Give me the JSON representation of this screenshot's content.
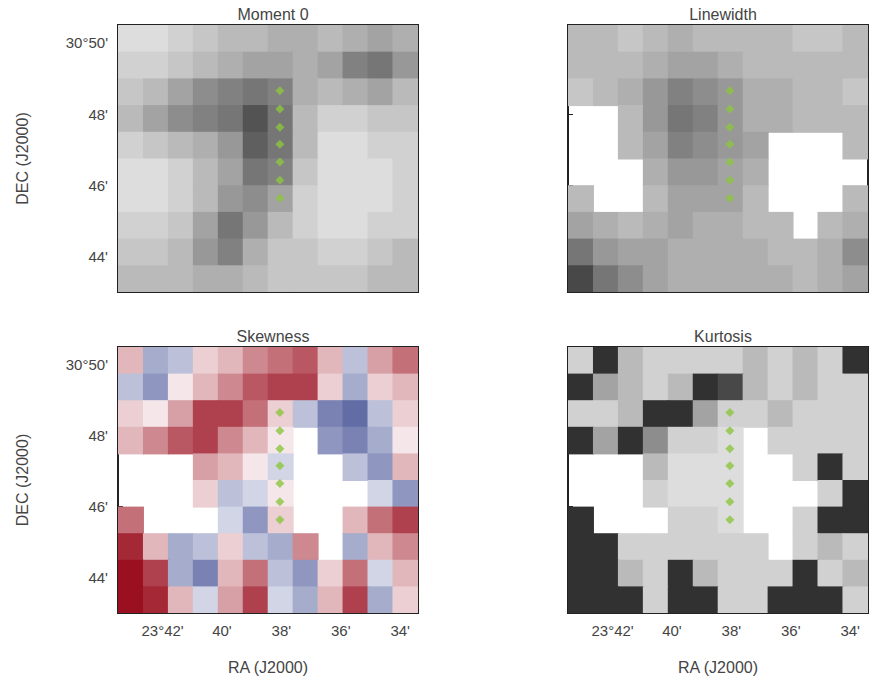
{
  "chart_data": [
    {
      "type": "heatmap",
      "title": "Moment 0",
      "ylabel": "DEC (J2000)",
      "tick_labels": "y",
      "grid": false,
      "xlim": [
        43.5,
        33.4
      ],
      "ylim": [
        43,
        50.5
      ],
      "xticks": [
        {
          "value": 42,
          "label": "23°42'"
        },
        {
          "value": 40,
          "label": "40'"
        },
        {
          "value": 38,
          "label": "38'"
        },
        {
          "value": 36,
          "label": "36'"
        },
        {
          "value": 34,
          "label": "34'"
        }
      ],
      "yticks": [
        {
          "value": 44,
          "label": "44'"
        },
        {
          "value": 46,
          "label": "46'"
        },
        {
          "value": 48,
          "label": "48'"
        },
        {
          "value": 50,
          "label": "30°50'"
        }
      ],
      "x": [
        43.08,
        42.24,
        41.4,
        40.56,
        39.72,
        38.88,
        38.04,
        37.2,
        36.36,
        35.52,
        34.68,
        33.84
      ],
      "y": [
        50.125,
        49.375,
        48.625,
        47.875,
        47.125,
        46.375,
        45.625,
        44.875,
        44.125,
        43.375
      ],
      "crange": [
        0,
        1
      ],
      "colors": [
        "#ffffff",
        "#1a1a1a"
      ],
      "cells": [
        [
          0.15,
          0.15,
          0.2,
          0.25,
          0.3,
          0.3,
          0.35,
          0.35,
          0.3,
          0.35,
          0.4,
          0.35
        ],
        [
          0.2,
          0.2,
          0.25,
          0.3,
          0.35,
          0.4,
          0.4,
          0.35,
          0.4,
          0.55,
          0.6,
          0.45
        ],
        [
          0.25,
          0.3,
          0.4,
          0.5,
          0.55,
          0.6,
          0.55,
          0.35,
          0.3,
          0.35,
          0.4,
          0.3
        ],
        [
          0.3,
          0.4,
          0.5,
          0.55,
          0.6,
          0.75,
          0.6,
          0.3,
          0.2,
          0.2,
          0.25,
          0.25
        ],
        [
          0.2,
          0.25,
          0.3,
          0.35,
          0.45,
          0.7,
          0.6,
          0.3,
          0.15,
          0.15,
          0.2,
          0.2
        ],
        [
          0.15,
          0.15,
          0.2,
          0.3,
          0.4,
          0.6,
          0.55,
          0.25,
          0.15,
          0.15,
          0.15,
          0.2
        ],
        [
          0.15,
          0.15,
          0.2,
          0.3,
          0.45,
          0.5,
          0.4,
          0.2,
          0.15,
          0.15,
          0.15,
          0.2
        ],
        [
          0.2,
          0.2,
          0.25,
          0.4,
          0.6,
          0.45,
          0.3,
          0.2,
          0.15,
          0.15,
          0.2,
          0.2
        ],
        [
          0.25,
          0.25,
          0.3,
          0.45,
          0.55,
          0.35,
          0.25,
          0.25,
          0.2,
          0.2,
          0.25,
          0.3
        ],
        [
          0.3,
          0.3,
          0.3,
          0.35,
          0.35,
          0.3,
          0.25,
          0.25,
          0.25,
          0.25,
          0.3,
          0.3
        ]
      ],
      "series": [
        {
          "type": "scatter",
          "marker": "diamond",
          "color": "#8cc63f",
          "x": [
            38.05,
            38.05,
            38.05,
            38.05,
            38.05,
            38.05,
            38.05
          ],
          "values": [
            48.65,
            48.14,
            47.63,
            47.15,
            46.65,
            46.14,
            45.63
          ]
        }
      ]
    },
    {
      "type": "heatmap",
      "title": "Linewidth",
      "tick_labels": false,
      "grid": false,
      "xlim": [
        43.5,
        33.4
      ],
      "ylim": [
        43,
        50.5
      ],
      "xticks": [
        {
          "value": 42,
          "label": "23°42'"
        },
        {
          "value": 40,
          "label": "40'"
        },
        {
          "value": 38,
          "label": "38'"
        },
        {
          "value": 36,
          "label": "36'"
        },
        {
          "value": 34,
          "label": "34'"
        }
      ],
      "yticks": [
        {
          "value": 44,
          "label": "44'"
        },
        {
          "value": 46,
          "label": "46'"
        },
        {
          "value": 48,
          "label": "48'"
        },
        {
          "value": 50,
          "label": "30°50'"
        }
      ],
      "x": [
        43.08,
        42.24,
        41.4,
        40.56,
        39.72,
        38.88,
        38.04,
        37.2,
        36.36,
        35.52,
        34.68,
        33.84
      ],
      "y": [
        50.125,
        49.375,
        48.625,
        47.875,
        47.125,
        46.375,
        45.625,
        44.875,
        44.125,
        43.375
      ],
      "crange": [
        0,
        1
      ],
      "colors": [
        "#ffffff",
        "#1a1a1a"
      ],
      "cells": [
        [
          0.3,
          0.3,
          0.25,
          0.3,
          0.35,
          0.3,
          0.3,
          0.3,
          0.3,
          0.25,
          0.25,
          0.3
        ],
        [
          0.3,
          0.3,
          0.3,
          0.35,
          0.4,
          0.4,
          0.35,
          0.3,
          0.3,
          0.3,
          0.3,
          0.3
        ],
        [
          0.25,
          0.3,
          0.35,
          0.45,
          0.55,
          0.5,
          0.45,
          0.35,
          0.35,
          0.3,
          0.3,
          0.25
        ],
        [
          null,
          null,
          0.3,
          0.45,
          0.6,
          0.55,
          0.45,
          0.35,
          0.35,
          0.3,
          0.3,
          0.3
        ],
        [
          null,
          null,
          0.3,
          0.4,
          0.55,
          0.5,
          0.45,
          0.4,
          null,
          null,
          null,
          0.3
        ],
        [
          null,
          null,
          null,
          0.35,
          0.45,
          0.45,
          0.4,
          0.35,
          null,
          null,
          null,
          null
        ],
        [
          0.3,
          null,
          null,
          0.3,
          0.4,
          0.4,
          0.4,
          0.3,
          null,
          null,
          null,
          0.3
        ],
        [
          0.4,
          0.35,
          0.3,
          0.35,
          0.4,
          0.35,
          0.35,
          0.3,
          0.3,
          null,
          0.3,
          0.35
        ],
        [
          0.6,
          0.45,
          0.4,
          0.4,
          0.35,
          0.35,
          0.35,
          0.35,
          0.3,
          0.3,
          0.35,
          0.5
        ],
        [
          0.8,
          0.6,
          0.5,
          0.4,
          0.35,
          0.35,
          0.35,
          0.35,
          0.35,
          0.3,
          0.35,
          0.4
        ]
      ],
      "series": [
        {
          "type": "scatter",
          "marker": "diamond",
          "color": "#8cc63f",
          "x": [
            38.05,
            38.05,
            38.05,
            38.05,
            38.05,
            38.05,
            38.05
          ],
          "values": [
            48.65,
            48.14,
            47.63,
            47.15,
            46.65,
            46.14,
            45.63
          ]
        }
      ]
    },
    {
      "type": "heatmap",
      "title": "Skewness",
      "xlabel": "RA (J2000)",
      "ylabel": "DEC (J2000)",
      "tick_labels": true,
      "grid": false,
      "xlim": [
        43.5,
        33.4
      ],
      "ylim": [
        43,
        50.5
      ],
      "xticks": [
        {
          "value": 42,
          "label": "23°42'"
        },
        {
          "value": 40,
          "label": "40'"
        },
        {
          "value": 38,
          "label": "38'"
        },
        {
          "value": 36,
          "label": "36'"
        },
        {
          "value": 34,
          "label": "34'"
        }
      ],
      "yticks": [
        {
          "value": 44,
          "label": "44'"
        },
        {
          "value": 46,
          "label": "46'"
        },
        {
          "value": 48,
          "label": "48'"
        },
        {
          "value": 50,
          "label": "30°50'"
        }
      ],
      "x": [
        43.08,
        42.24,
        41.4,
        40.56,
        39.72,
        38.88,
        38.04,
        37.2,
        36.36,
        35.52,
        34.68,
        33.84
      ],
      "y": [
        50.125,
        49.375,
        48.625,
        47.875,
        47.125,
        46.375,
        45.625,
        44.875,
        44.125,
        43.375
      ],
      "crange": [
        -1,
        1
      ],
      "colors": [
        "#1f2f80",
        "#ffffff",
        "#9b1020"
      ],
      "cells": [
        [
          0.3,
          -0.4,
          -0.3,
          0.2,
          0.3,
          0.5,
          0.6,
          0.7,
          0.3,
          -0.3,
          0.4,
          0.6
        ],
        [
          -0.3,
          -0.5,
          0.1,
          0.3,
          0.5,
          0.7,
          0.8,
          0.8,
          0.2,
          -0.4,
          0.2,
          0.3
        ],
        [
          0.2,
          0.1,
          0.4,
          0.8,
          0.8,
          0.6,
          0.2,
          -0.3,
          -0.6,
          -0.7,
          -0.3,
          0.2
        ],
        [
          0.3,
          0.5,
          0.7,
          0.8,
          0.5,
          0.3,
          0.1,
          null,
          -0.5,
          -0.6,
          -0.4,
          0.1
        ],
        [
          null,
          null,
          null,
          0.4,
          0.3,
          0.1,
          -0.2,
          null,
          null,
          -0.3,
          -0.5,
          0.3
        ],
        [
          null,
          null,
          null,
          0.2,
          -0.3,
          -0.2,
          0.1,
          null,
          null,
          null,
          -0.2,
          -0.5
        ],
        [
          0.6,
          null,
          null,
          null,
          -0.2,
          -0.5,
          0.2,
          null,
          null,
          0.3,
          0.6,
          0.8
        ],
        [
          0.9,
          0.3,
          -0.4,
          -0.3,
          0.2,
          -0.3,
          -0.4,
          0.5,
          null,
          -0.4,
          0.3,
          0.5
        ],
        [
          1.0,
          0.8,
          -0.4,
          -0.6,
          0.3,
          0.6,
          -0.3,
          -0.5,
          0.2,
          0.6,
          -0.2,
          0.3
        ],
        [
          1.0,
          0.9,
          0.3,
          -0.2,
          0.4,
          0.8,
          -0.2,
          -0.4,
          0.3,
          0.8,
          -0.4,
          0.2
        ]
      ],
      "series": [
        {
          "type": "scatter",
          "marker": "diamond",
          "color": "#8cc63f",
          "x": [
            38.05,
            38.05,
            38.05,
            38.05,
            38.05,
            38.05,
            38.05
          ],
          "values": [
            48.65,
            48.14,
            47.63,
            47.15,
            46.65,
            46.14,
            45.63
          ]
        }
      ]
    },
    {
      "type": "heatmap",
      "title": "Kurtosis",
      "xlabel": "RA (J2000)",
      "tick_labels": "x",
      "grid": false,
      "xlim": [
        43.5,
        33.4
      ],
      "ylim": [
        43,
        50.5
      ],
      "xticks": [
        {
          "value": 42,
          "label": "23°42'"
        },
        {
          "value": 40,
          "label": "40'"
        },
        {
          "value": 38,
          "label": "38'"
        },
        {
          "value": 36,
          "label": "36'"
        },
        {
          "value": 34,
          "label": "34'"
        }
      ],
      "yticks": [
        {
          "value": 44,
          "label": "44'"
        },
        {
          "value": 46,
          "label": "46'"
        },
        {
          "value": 48,
          "label": "48'"
        },
        {
          "value": 50,
          "label": "30°50'"
        }
      ],
      "x": [
        43.08,
        42.24,
        41.4,
        40.56,
        39.72,
        38.88,
        38.04,
        37.2,
        36.36,
        35.52,
        34.68,
        33.84
      ],
      "y": [
        50.125,
        49.375,
        48.625,
        47.875,
        47.125,
        46.375,
        45.625,
        44.875,
        44.125,
        43.375
      ],
      "crange": [
        0,
        1
      ],
      "colors": [
        "#ffffff",
        "#1a1a1a"
      ],
      "cells": [
        [
          0.2,
          0.9,
          0.3,
          0.2,
          0.2,
          0.2,
          0.2,
          0.3,
          0.2,
          0.3,
          0.2,
          0.9
        ],
        [
          0.9,
          0.4,
          0.3,
          0.2,
          0.3,
          0.9,
          0.8,
          0.3,
          0.2,
          0.3,
          0.2,
          0.2
        ],
        [
          0.2,
          0.2,
          0.3,
          0.9,
          0.9,
          0.4,
          0.2,
          0.2,
          0.3,
          0.2,
          0.2,
          0.2
        ],
        [
          0.9,
          0.4,
          0.9,
          0.5,
          0.2,
          0.2,
          0.15,
          null,
          0.2,
          0.2,
          0.2,
          0.2
        ],
        [
          null,
          null,
          null,
          0.3,
          0.15,
          0.15,
          0.15,
          null,
          null,
          0.2,
          0.9,
          0.2
        ],
        [
          null,
          null,
          null,
          0.2,
          0.15,
          0.15,
          0.15,
          null,
          null,
          null,
          0.2,
          0.9
        ],
        [
          0.9,
          null,
          null,
          null,
          0.2,
          0.2,
          0.15,
          null,
          null,
          0.2,
          0.9,
          0.9
        ],
        [
          0.9,
          0.9,
          0.2,
          0.2,
          0.2,
          0.2,
          0.2,
          0.2,
          null,
          0.2,
          0.3,
          0.2
        ],
        [
          0.9,
          0.9,
          0.3,
          0.2,
          0.9,
          0.3,
          0.2,
          0.2,
          0.2,
          0.9,
          0.2,
          0.3
        ],
        [
          0.9,
          0.9,
          0.9,
          0.2,
          0.9,
          0.9,
          0.2,
          0.2,
          0.9,
          0.9,
          0.9,
          0.2
        ]
      ],
      "series": [
        {
          "type": "scatter",
          "marker": "diamond",
          "color": "#8cc63f",
          "x": [
            38.05,
            38.05,
            38.05,
            38.05,
            38.05,
            38.05,
            38.05
          ],
          "values": [
            48.65,
            48.14,
            47.63,
            47.15,
            46.65,
            46.14,
            45.63
          ]
        }
      ]
    }
  ]
}
